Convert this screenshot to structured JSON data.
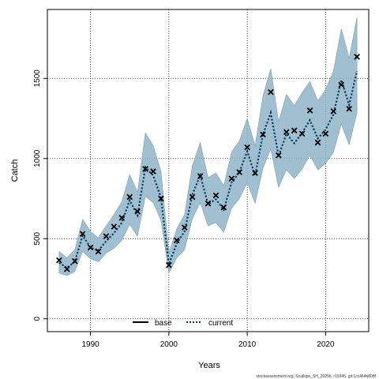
{
  "chart_data": {
    "type": "line",
    "xlabel": "Years",
    "ylabel": "Catch",
    "xlim": [
      1984.5,
      2025.5
    ],
    "ylim": [
      -80,
      1930
    ],
    "x_ticks": [
      1990,
      2000,
      2010,
      2020
    ],
    "y_ticks": [
      0,
      500,
      1000,
      1500
    ],
    "grid": true,
    "legend_position": "bottom",
    "legend": [
      {
        "name": "base",
        "style": "solid",
        "color": "#000000"
      },
      {
        "name": "current",
        "style": "dotted",
        "color": "#0b3d5e"
      }
    ],
    "observed": {
      "marker": "x",
      "x": [
        1986,
        1987,
        1988,
        1989,
        1990,
        1991,
        1992,
        1993,
        1994,
        1995,
        1996,
        1997,
        1998,
        1999,
        2000,
        2001,
        2002,
        2003,
        2004,
        2005,
        2006,
        2007,
        2008,
        2009,
        2010,
        2011,
        2012,
        2013,
        2014,
        2015,
        2016,
        2017,
        2018,
        2019,
        2020,
        2021,
        2022,
        2023,
        2024
      ],
      "y": [
        365,
        310,
        360,
        530,
        445,
        420,
        515,
        575,
        630,
        760,
        670,
        935,
        920,
        750,
        335,
        490,
        570,
        760,
        890,
        720,
        770,
        695,
        875,
        915,
        1070,
        910,
        1150,
        1415,
        1020,
        1165,
        1175,
        1155,
        1300,
        1100,
        1155,
        1295,
        1460,
        1310,
        1635
      ]
    },
    "series": [
      {
        "name": "current",
        "x": [
          1986,
          1987,
          1988,
          1989,
          1990,
          1991,
          1992,
          1993,
          1994,
          1995,
          1996,
          1997,
          1998,
          1999,
          2000,
          2001,
          2002,
          2003,
          2004,
          2005,
          2006,
          2007,
          2008,
          2009,
          2010,
          2011,
          2012,
          2013,
          2014,
          2015,
          2016,
          2017,
          2018,
          2019,
          2020,
          2021,
          2022,
          2023,
          2024
        ],
        "y": [
          350,
          318,
          356,
          520,
          445,
          425,
          485,
          535,
          600,
          740,
          645,
          945,
          895,
          755,
          340,
          470,
          545,
          775,
          895,
          715,
          745,
          680,
          850,
          915,
          1045,
          895,
          1150,
          1285,
          1015,
          1155,
          1095,
          1160,
          1240,
          1125,
          1180,
          1275,
          1490,
          1335,
          1545
        ],
        "lower": [
          285,
          270,
          295,
          420,
          375,
          355,
          410,
          440,
          490,
          590,
          515,
          765,
          725,
          615,
          285,
          380,
          430,
          625,
          725,
          580,
          600,
          540,
          690,
          750,
          850,
          720,
          940,
          1060,
          820,
          930,
          875,
          935,
          1020,
          930,
          970,
          1040,
          1215,
          1085,
          1285
        ],
        "upper": [
          420,
          380,
          430,
          620,
          545,
          505,
          580,
          650,
          730,
          900,
          790,
          1160,
          1080,
          920,
          410,
          560,
          650,
          955,
          1100,
          880,
          910,
          830,
          1040,
          1110,
          1250,
          1080,
          1390,
          1560,
          1230,
          1400,
          1330,
          1410,
          1480,
          1360,
          1430,
          1545,
          1810,
          1625,
          1880
        ]
      }
    ]
  },
  "footer": {
    "text": "stockassessment.org, Scallops_SH_2025b, r19345, git:1cc464b808f"
  }
}
